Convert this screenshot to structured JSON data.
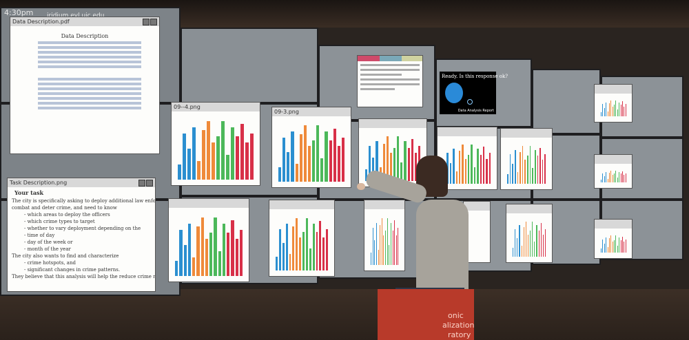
{
  "hud": {
    "time": "4:30pm",
    "host": "iridium.evl.uic.edu"
  },
  "windows": {
    "data_desc": {
      "title": "Data Description.pdf",
      "heading": "Data Description"
    },
    "task_desc": {
      "title": "Task Description.png",
      "heading": "Your task",
      "lines": [
        "The city is specifically asking to deploy additional law enforcement resources to",
        "combat and deter crime, and need to know",
        "- which areas to deploy the officers",
        "- which crime types to target",
        "- whether to vary deployment depending on the",
        "- time of day",
        "- day of the week or",
        "- month of the year",
        "The city also wants to find and characterize",
        "- crime hotspots, and",
        "- significant changes in crime patterns.",
        "They believe that this analysis will help the reduce crime rates."
      ]
    },
    "chart1": {
      "title": "09--4.png"
    },
    "chart2": {
      "title": "09-3.png"
    },
    "chart3": {
      "title": "09-3.png"
    },
    "dialog": {
      "text": "Ready. Is this response ok?",
      "footer": "Data Analysis Report"
    }
  },
  "sign": {
    "lines": [
      "onic",
      "alization",
      "ratory"
    ]
  },
  "colors": {
    "blue": "#2b8fd0",
    "orange": "#ef8a3a",
    "green": "#4cb85a",
    "red": "#d83048"
  },
  "chart_bars": [
    0.25,
    0.75,
    0.5,
    0.85,
    0.3,
    0.8,
    0.95,
    0.6,
    0.7,
    0.95,
    0.4,
    0.85,
    0.7,
    0.9,
    0.6,
    0.75
  ]
}
